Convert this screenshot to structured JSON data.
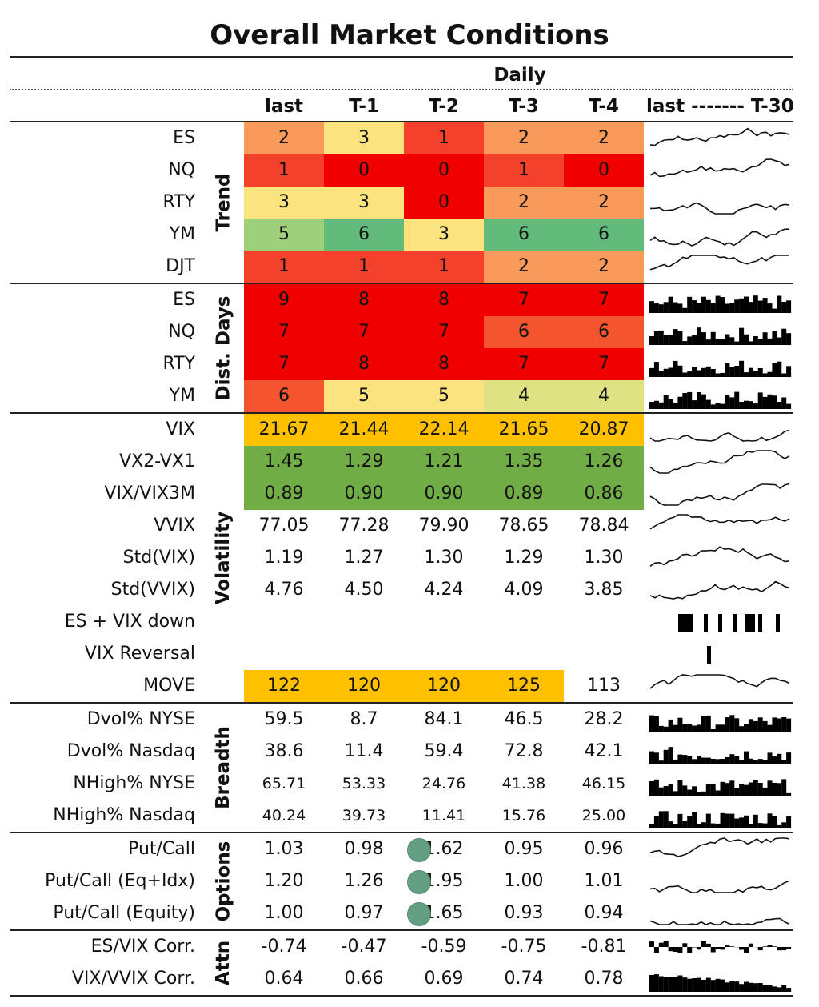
{
  "title": "Overall Market Conditions",
  "header": {
    "period": "Daily",
    "columns": [
      "last",
      "T-1",
      "T-2",
      "T-3",
      "T-4"
    ],
    "spark_label": "last ------- T-30"
  },
  "groups": [
    {
      "name": "Trend",
      "rows": [
        {
          "label": "ES",
          "values": [
            "2",
            "3",
            "1",
            "2",
            "2"
          ],
          "colors": [
            "#f79a5a",
            "#fbe47f",
            "#f4412c",
            "#f79a5a",
            "#f79a5a"
          ],
          "spark": "line"
        },
        {
          "label": "NQ",
          "values": [
            "1",
            "0",
            "0",
            "1",
            "0"
          ],
          "colors": [
            "#f4412c",
            "#f00000",
            "#f00000",
            "#f4412c",
            "#f00000"
          ],
          "spark": "line"
        },
        {
          "label": "RTY",
          "values": [
            "3",
            "3",
            "0",
            "2",
            "2"
          ],
          "colors": [
            "#fbe47f",
            "#fbe47f",
            "#f00000",
            "#f79a5a",
            "#f79a5a"
          ],
          "spark": "line"
        },
        {
          "label": "YM",
          "values": [
            "5",
            "6",
            "3",
            "6",
            "6"
          ],
          "colors": [
            "#9ed07c",
            "#63bb7b",
            "#fbe47f",
            "#63bb7b",
            "#63bb7b"
          ],
          "spark": "line"
        },
        {
          "label": "DJT",
          "values": [
            "1",
            "1",
            "1",
            "2",
            "2"
          ],
          "colors": [
            "#f4412c",
            "#f4412c",
            "#f4412c",
            "#f79a5a",
            "#f79a5a"
          ],
          "spark": "line"
        }
      ]
    },
    {
      "name": "Dist. Days",
      "rows": [
        {
          "label": "ES",
          "values": [
            "9",
            "8",
            "8",
            "7",
            "7"
          ],
          "colors": [
            "#f00000",
            "#f00000",
            "#f00000",
            "#f00000",
            "#f00000"
          ],
          "spark": "bar"
        },
        {
          "label": "NQ",
          "values": [
            "7",
            "7",
            "7",
            "6",
            "6"
          ],
          "colors": [
            "#f00000",
            "#f00000",
            "#f00000",
            "#f4552e",
            "#f4552e"
          ],
          "spark": "bar"
        },
        {
          "label": "RTY",
          "values": [
            "7",
            "8",
            "8",
            "7",
            "7"
          ],
          "colors": [
            "#f00000",
            "#f00000",
            "#f00000",
            "#f00000",
            "#f00000"
          ],
          "spark": "bar"
        },
        {
          "label": "YM",
          "values": [
            "6",
            "5",
            "5",
            "4",
            "4"
          ],
          "colors": [
            "#f4552e",
            "#fbe47f",
            "#fbe47f",
            "#dfe283",
            "#dfe283"
          ],
          "spark": "bar"
        }
      ]
    },
    {
      "name": "Volatility",
      "rows": [
        {
          "label": "VIX",
          "values": [
            "21.67",
            "21.44",
            "22.14",
            "21.65",
            "20.87"
          ],
          "colors": [
            "#ffc000",
            "#ffc000",
            "#ffc000",
            "#ffc000",
            "#ffc000"
          ],
          "spark": "line"
        },
        {
          "label": "VX2-VX1",
          "values": [
            "1.45",
            "1.29",
            "1.21",
            "1.35",
            "1.26"
          ],
          "colors": [
            "#70ad47",
            "#70ad47",
            "#70ad47",
            "#70ad47",
            "#70ad47"
          ],
          "spark": "line"
        },
        {
          "label": "VIX/VIX3M",
          "values": [
            "0.89",
            "0.90",
            "0.90",
            "0.89",
            "0.86"
          ],
          "colors": [
            "#70ad47",
            "#70ad47",
            "#70ad47",
            "#70ad47",
            "#70ad47"
          ],
          "spark": "line"
        },
        {
          "label": "VVIX",
          "values": [
            "77.05",
            "77.28",
            "79.90",
            "78.65",
            "78.84"
          ],
          "colors": [
            "",
            "",
            "",
            "",
            ""
          ],
          "spark": "line"
        },
        {
          "label": "Std(VIX)",
          "values": [
            "1.19",
            "1.27",
            "1.30",
            "1.29",
            "1.30"
          ],
          "colors": [
            "",
            "",
            "",
            "",
            ""
          ],
          "spark": "line"
        },
        {
          "label": "Std(VVIX)",
          "values": [
            "4.76",
            "4.50",
            "4.24",
            "4.09",
            "3.85"
          ],
          "colors": [
            "",
            "",
            "",
            "",
            ""
          ],
          "spark": "line"
        },
        {
          "label": "ES + VIX down",
          "values": [
            "",
            "",
            "",
            "",
            ""
          ],
          "colors": [
            "",
            "",
            "",
            "",
            ""
          ],
          "spark": "events"
        },
        {
          "label": "VIX Reversal",
          "values": [
            "",
            "",
            "",
            "",
            ""
          ],
          "colors": [
            "",
            "",
            "",
            "",
            ""
          ],
          "spark": "single"
        },
        {
          "label": "MOVE",
          "values": [
            "122",
            "120",
            "120",
            "125",
            "113"
          ],
          "colors": [
            "#ffc000",
            "#ffc000",
            "#ffc000",
            "#ffc000",
            ""
          ],
          "spark": "line"
        }
      ]
    },
    {
      "name": "Breadth",
      "rows": [
        {
          "label": "Dvol% NYSE",
          "values": [
            "59.5",
            "8.7",
            "84.1",
            "46.5",
            "28.2"
          ],
          "colors": [
            "",
            "",
            "",
            "",
            ""
          ],
          "spark": "bar"
        },
        {
          "label": "Dvol% Nasdaq",
          "values": [
            "38.6",
            "11.4",
            "59.4",
            "72.8",
            "42.1"
          ],
          "colors": [
            "",
            "",
            "",
            "",
            ""
          ],
          "spark": "bar"
        },
        {
          "label": "NHigh% NYSE",
          "values": [
            "65.71",
            "53.33",
            "24.76",
            "41.38",
            "46.15"
          ],
          "colors": [
            "",
            "",
            "",
            "",
            ""
          ],
          "spark": "bar",
          "small": true
        },
        {
          "label": "NHigh% Nasdaq",
          "values": [
            "40.24",
            "39.73",
            "11.41",
            "15.76",
            "25.00"
          ],
          "colors": [
            "",
            "",
            "",
            "",
            ""
          ],
          "spark": "bar",
          "small": true
        }
      ]
    },
    {
      "name": "Options",
      "rows": [
        {
          "label": "Put/Call",
          "values": [
            "1.03",
            "0.98",
            "1.62",
            "0.95",
            "0.96"
          ],
          "colors": [
            "",
            "",
            "",
            "",
            ""
          ],
          "spark": "line",
          "dot": 2
        },
        {
          "label": "Put/Call (Eq+Idx)",
          "values": [
            "1.20",
            "1.26",
            "1.95",
            "1.00",
            "1.01"
          ],
          "colors": [
            "",
            "",
            "",
            "",
            ""
          ],
          "spark": "line",
          "dot": 2
        },
        {
          "label": "Put/Call (Equity)",
          "values": [
            "1.00",
            "0.97",
            "1.65",
            "0.93",
            "0.94"
          ],
          "colors": [
            "",
            "",
            "",
            "",
            ""
          ],
          "spark": "line",
          "dot": 2
        }
      ]
    },
    {
      "name": "Attn",
      "rows": [
        {
          "label": "ES/VIX Corr.",
          "values": [
            "-0.74",
            "-0.47",
            "-0.59",
            "-0.75",
            "-0.81"
          ],
          "colors": [
            "",
            "",
            "",
            "",
            ""
          ],
          "spark": "posneg"
        },
        {
          "label": "VIX/VVIX Corr.",
          "values": [
            "0.64",
            "0.66",
            "0.69",
            "0.74",
            "0.78"
          ],
          "colors": [
            "",
            "",
            "",
            "",
            ""
          ],
          "spark": "area"
        }
      ]
    }
  ]
}
